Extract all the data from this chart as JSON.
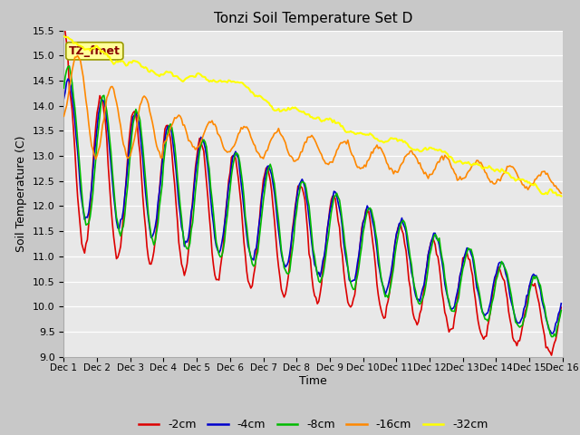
{
  "title": "Tonzi Soil Temperature Set D",
  "xlabel": "Time",
  "ylabel": "Soil Temperature (C)",
  "ylim": [
    9.0,
    15.5
  ],
  "fig_bg_color": "#c8c8c8",
  "plot_bg_color": "#e8e8e8",
  "annotation_text": "TZ_fmet",
  "annotation_box_color": "#ffff99",
  "annotation_text_color": "#880000",
  "legend_labels": [
    "-2cm",
    "-4cm",
    "-8cm",
    "-16cm",
    "-32cm"
  ],
  "line_colors": [
    "#dd0000",
    "#0000cc",
    "#00bb00",
    "#ff8800",
    "#ffff00"
  ],
  "line_widths": [
    1.2,
    1.2,
    1.2,
    1.2,
    1.5
  ],
  "yticks": [
    9.0,
    9.5,
    10.0,
    10.5,
    11.0,
    11.5,
    12.0,
    12.5,
    13.0,
    13.5,
    14.0,
    14.5,
    15.0,
    15.5
  ],
  "x_tick_labels": [
    "Dec 1",
    "Dec 2",
    "Dec 3",
    "Dec 4",
    "Dec 5",
    "Dec 6",
    "Dec 7",
    "Dec 8",
    "Dec 9",
    "Dec 10",
    "Dec 11",
    "Dec 12",
    "Dec 13",
    "Dec 14",
    "Dec 15",
    "Dec 16"
  ],
  "n_per_day": 24,
  "n_days": 15
}
